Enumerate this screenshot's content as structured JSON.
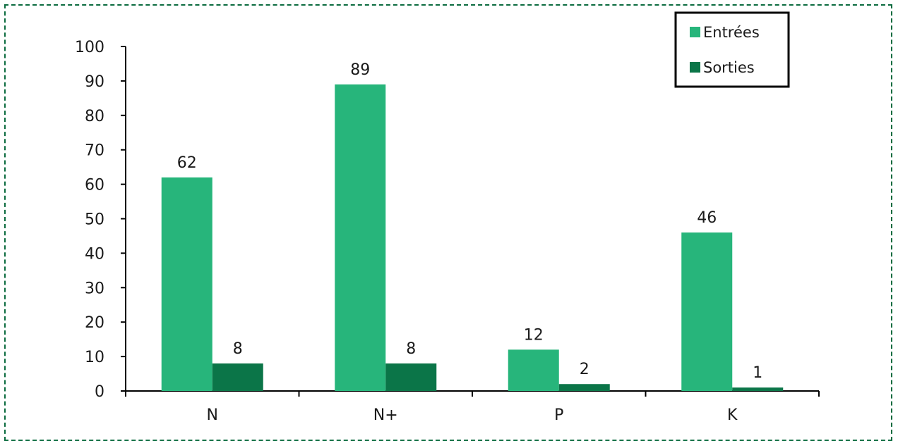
{
  "chart_data": {
    "type": "bar",
    "categories": [
      "N",
      "N+",
      "P",
      "K"
    ],
    "series": [
      {
        "name": "Entrées",
        "values": [
          62,
          89,
          12,
          46
        ],
        "color": "#27b57b"
      },
      {
        "name": "Sorties",
        "values": [
          8,
          8,
          2,
          1
        ],
        "color": "#0b7548"
      }
    ],
    "ylim": [
      0,
      100
    ],
    "yticks": [
      0,
      10,
      20,
      30,
      40,
      50,
      60,
      70,
      80,
      90,
      100
    ],
    "data_labels": true,
    "grid": false,
    "legend_position": "top-right",
    "frame_color": "#0b6b3f"
  }
}
